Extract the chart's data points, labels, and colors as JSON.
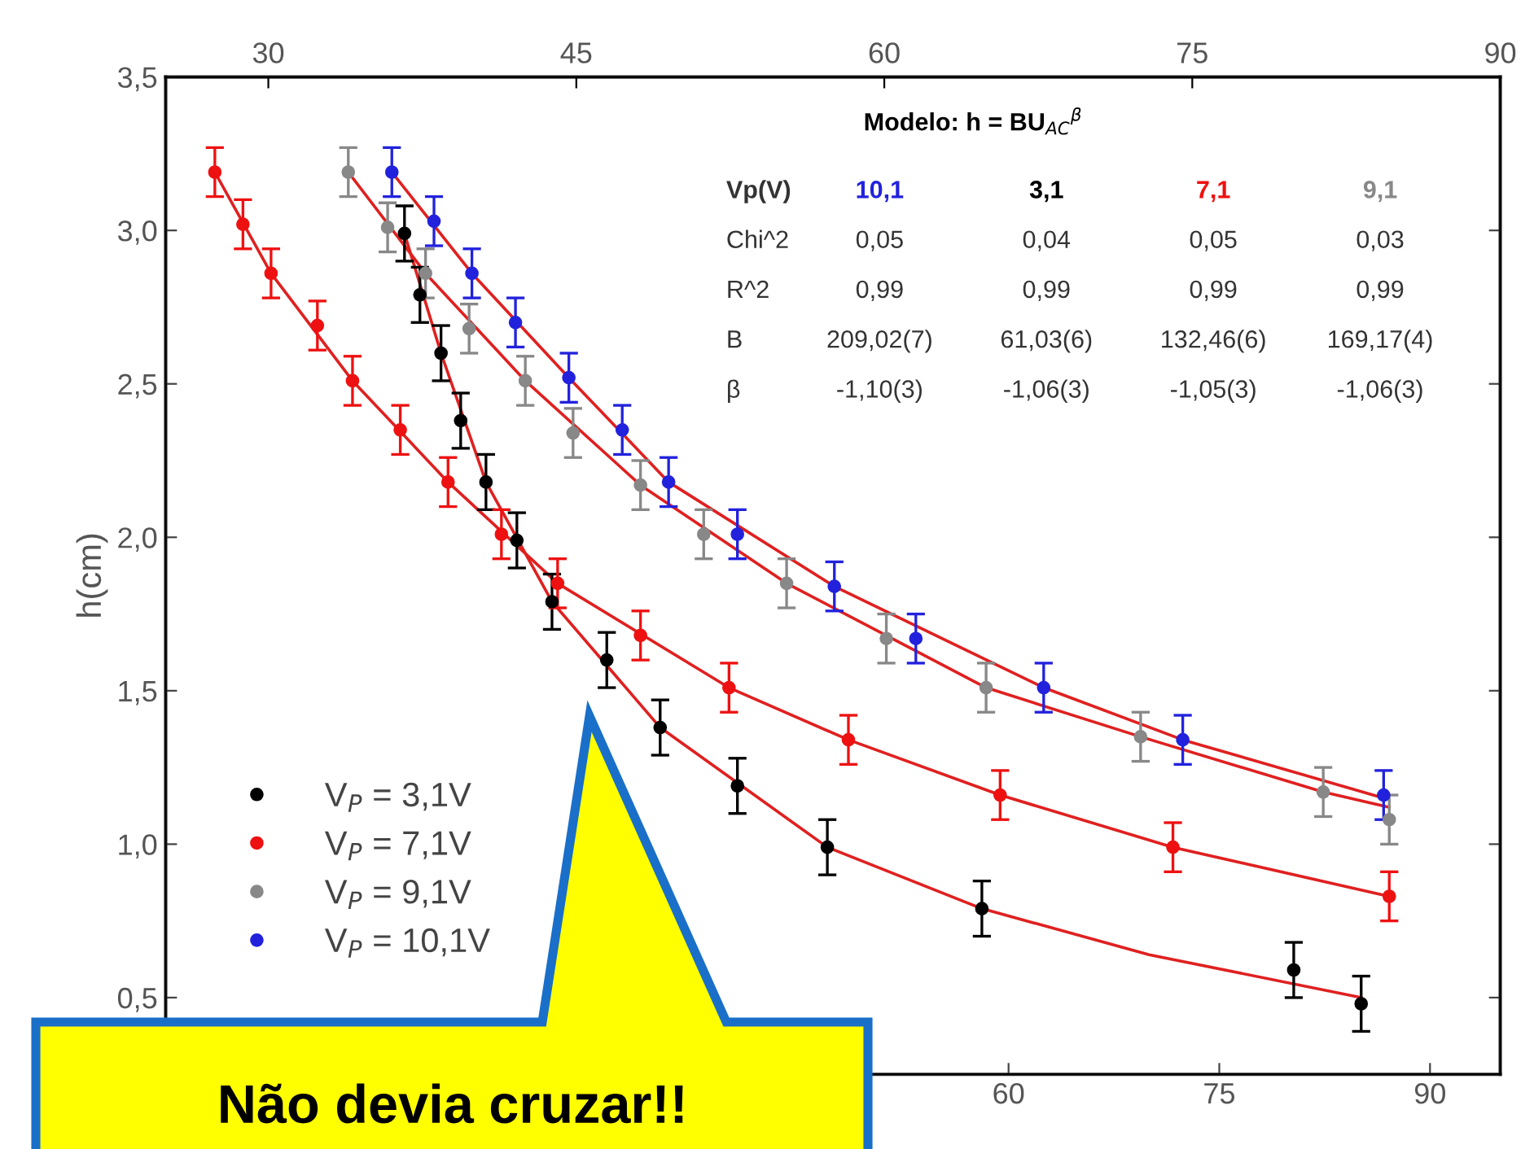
{
  "chart_data": {
    "type": "scatter",
    "ylabel": "h(cm)",
    "xlim": [
      0,
      95
    ],
    "xticks": [
      60,
      75,
      90
    ],
    "x2lim": [
      25,
      90
    ],
    "x2ticks": [
      30,
      45,
      60,
      75,
      90
    ],
    "ylim": [
      0.25,
      3.5
    ],
    "yticks": [
      {
        "value": 0.5,
        "label": "0,5"
      },
      {
        "value": 1.0,
        "label": "1,0"
      },
      {
        "value": 1.5,
        "label": "1,5"
      },
      {
        "value": 2.0,
        "label": "2,0"
      },
      {
        "value": 2.5,
        "label": "2,5"
      },
      {
        "value": 3.0,
        "label": "3,0"
      },
      {
        "value": 3.5,
        "label": "3,5"
      }
    ],
    "marker": "circle",
    "legend": "bottom left",
    "grid": false,
    "series": [
      {
        "name": "V$_{P}$ = 3,1V",
        "color": "#000000",
        "x": [
          17.0,
          18.1,
          19.6,
          21.0,
          22.8,
          25.0,
          27.5,
          31.4,
          35.2,
          40.7,
          47.1,
          58.1,
          80.3,
          85.1
        ],
        "values": [
          2.99,
          2.79,
          2.6,
          2.38,
          2.18,
          1.99,
          1.79,
          1.6,
          1.38,
          1.19,
          0.99,
          0.79,
          0.59,
          0.48
        ],
        "errors": [
          0.09,
          0.09,
          0.09,
          0.09,
          0.09,
          0.09,
          0.09,
          0.09,
          0.09,
          0.09,
          0.09,
          0.09,
          0.09,
          0.09
        ]
      },
      {
        "name": "V$_{P}$ = 7,1V",
        "color": "#ee1111",
        "x": [
          3.5,
          5.5,
          7.5,
          10.8,
          13.3,
          16.7,
          20.1,
          23.9,
          27.9,
          33.8,
          40.1,
          48.6,
          59.4,
          71.7,
          87.1
        ],
        "values": [
          3.19,
          3.02,
          2.86,
          2.69,
          2.51,
          2.35,
          2.18,
          2.01,
          1.85,
          1.68,
          1.51,
          1.34,
          1.16,
          0.99,
          0.83
        ],
        "errors": [
          0.08,
          0.08,
          0.08,
          0.08,
          0.08,
          0.08,
          0.08,
          0.08,
          0.08,
          0.08,
          0.08,
          0.08,
          0.08,
          0.08,
          0.08
        ]
      },
      {
        "name": "V$_{P}$ = 9,1V",
        "color": "#888888",
        "x": [
          13.0,
          15.8,
          18.5,
          21.6,
          25.6,
          29.0,
          33.8,
          38.3,
          44.2,
          51.3,
          58.4,
          69.4,
          82.4,
          87.1
        ],
        "values": [
          3.19,
          3.01,
          2.86,
          2.68,
          2.51,
          2.34,
          2.17,
          2.01,
          1.85,
          1.67,
          1.51,
          1.35,
          1.17,
          1.08
        ],
        "errors": [
          0.08,
          0.08,
          0.08,
          0.08,
          0.08,
          0.08,
          0.08,
          0.08,
          0.08,
          0.08,
          0.08,
          0.08,
          0.08,
          0.08
        ]
      },
      {
        "name": "V$_{P}$ = 10,1V",
        "color": "#2222dd",
        "x": [
          16.1,
          19.1,
          21.8,
          24.9,
          28.7,
          32.5,
          35.8,
          40.7,
          47.6,
          53.4,
          62.5,
          72.4,
          86.7
        ],
        "values": [
          3.19,
          3.03,
          2.86,
          2.7,
          2.52,
          2.35,
          2.18,
          2.01,
          1.84,
          1.67,
          1.51,
          1.34,
          1.16
        ],
        "errors": [
          0.08,
          0.08,
          0.08,
          0.08,
          0.08,
          0.08,
          0.08,
          0.08,
          0.08,
          0.08,
          0.08,
          0.08,
          0.08
        ]
      },
      {
        "type": "line",
        "marker": "none",
        "color": "#e02020",
        "x": [
          17.0,
          19.6,
          22.8,
          27.5,
          35.2,
          47.1,
          58.1,
          70.0,
          85.1
        ],
        "values": [
          2.99,
          2.6,
          2.18,
          1.79,
          1.38,
          0.99,
          0.79,
          0.64,
          0.5
        ]
      },
      {
        "type": "line",
        "marker": "none",
        "color": "#e02020",
        "x": [
          3.5,
          7.5,
          13.3,
          20.1,
          27.9,
          40.1,
          48.6,
          59.4,
          71.7,
          87.1
        ],
        "values": [
          3.19,
          2.86,
          2.51,
          2.18,
          1.85,
          1.51,
          1.34,
          1.16,
          0.99,
          0.83
        ]
      },
      {
        "type": "line",
        "marker": "none",
        "color": "#e02020",
        "x": [
          13.0,
          18.5,
          25.6,
          33.8,
          44.2,
          58.4,
          69.4,
          82.4,
          87.1
        ],
        "values": [
          3.19,
          2.86,
          2.51,
          2.17,
          1.85,
          1.51,
          1.35,
          1.17,
          1.12
        ]
      },
      {
        "type": "line",
        "marker": "none",
        "color": "#e02020",
        "x": [
          16.1,
          21.8,
          28.7,
          35.8,
          47.6,
          62.5,
          72.4,
          86.7
        ],
        "values": [
          3.19,
          2.86,
          2.52,
          2.18,
          1.84,
          1.51,
          1.34,
          1.15
        ]
      }
    ],
    "annotations": [
      "Modelo: h = BU$_{AC}$$^{β}$",
      "Vp(V)",
      "10,1",
      "3,1",
      "7,1",
      "9,1",
      "Chi^2",
      "0,05",
      "0,04",
      "0,05",
      "0,03",
      "R^2",
      "0,99",
      "0,99",
      "0,99",
      "0,99",
      "B",
      "209,02(7)",
      "61,03(6)",
      "132,46(6)",
      "169,17(4)",
      "β",
      "-1,10(3)",
      "-1,06(3)",
      "-1,05(3)",
      "-1,06(3)",
      "Não devia cruzar!!"
    ]
  }
}
